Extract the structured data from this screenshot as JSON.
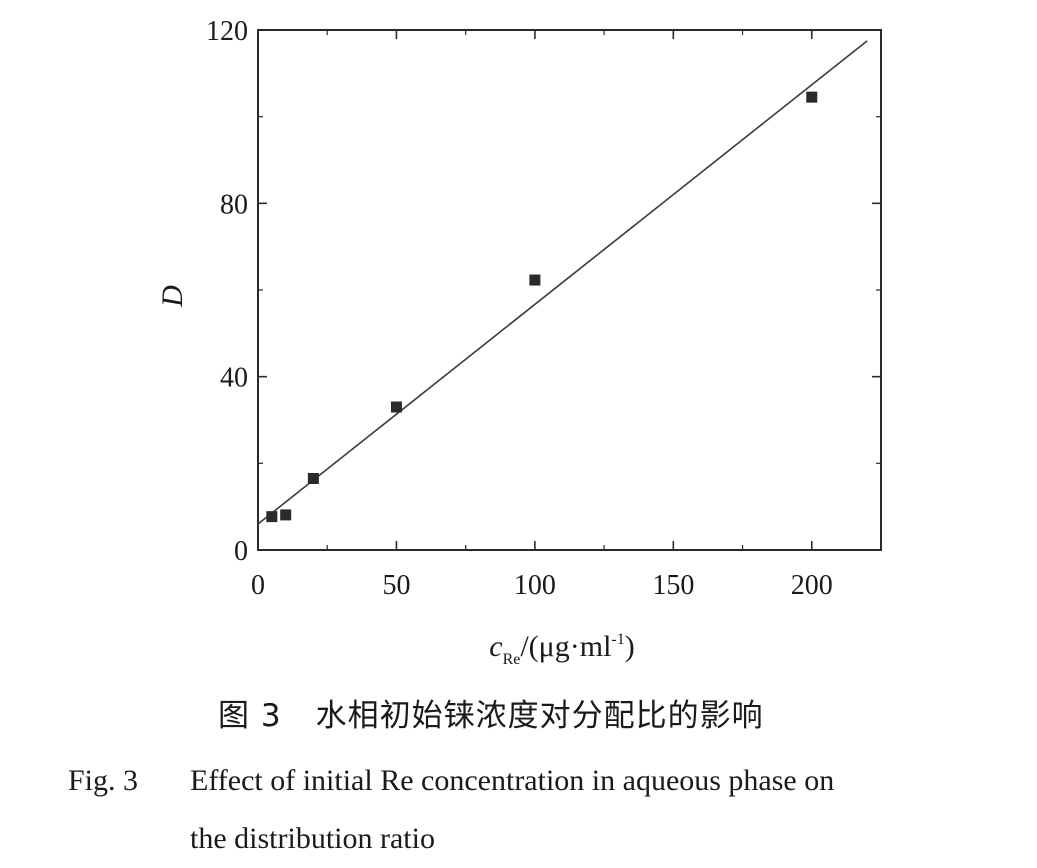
{
  "chart_data": {
    "type": "scatter",
    "ylabel": "D",
    "xlabel": {
      "symbol": "c",
      "subscript": "Re",
      "unit_open": "/(μg·ml",
      "unit_exp": "-1",
      "unit_close": ")"
    },
    "xlim": [
      0,
      225
    ],
    "ylim": [
      0,
      120
    ],
    "x_ticks": [
      0,
      50,
      100,
      150,
      200
    ],
    "y_ticks": [
      0,
      40,
      80,
      120
    ],
    "grid": false,
    "series": [
      {
        "points": [
          {
            "x": 5,
            "y": 7.7
          },
          {
            "x": 10,
            "y": 8.1
          },
          {
            "x": 20,
            "y": 16.5
          },
          {
            "x": 50,
            "y": 33.0
          },
          {
            "x": 100,
            "y": 62.3
          },
          {
            "x": 200,
            "y": 104.5
          }
        ],
        "marker": "square",
        "color": "#2a2a2a"
      }
    ],
    "fit_line": {
      "x_start": 0,
      "y_start": 6.0,
      "x_end": 220,
      "y_end": 117.5,
      "color": "#3a3a3a"
    }
  },
  "caption": {
    "cn_fig": "图 3",
    "cn_text": "水相初始铼浓度对分配比的影响",
    "en_fig": "Fig. 3",
    "en_line1": "Effect of initial Re concentration in aqueous phase on",
    "en_line2": "the distribution ratio"
  }
}
